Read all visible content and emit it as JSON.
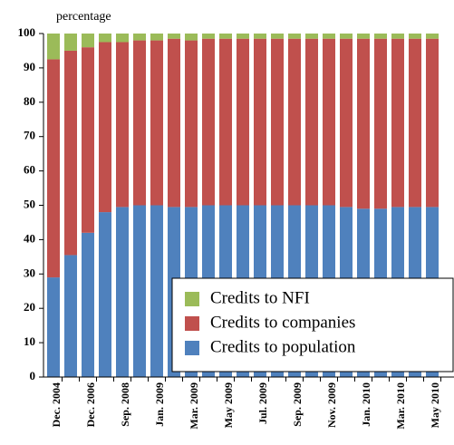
{
  "chart_data": {
    "type": "stacked_bar",
    "ylabel": "percentage",
    "categories": [
      "Dec. 2004",
      null,
      "Dec. 2006",
      null,
      "Sep. 2008",
      null,
      "Jan. 2009",
      null,
      "Mar. 2009",
      null,
      "May 2009",
      null,
      "Jul. 2009",
      null,
      "Sep. 2009",
      null,
      "Nov. 2009",
      null,
      "Jan. 2010",
      null,
      "Mar. 2010",
      null,
      "May 2010"
    ],
    "series": [
      {
        "name": "Credits to population",
        "color": "#4f81bd",
        "values": [
          29,
          35.5,
          42,
          48,
          49.5,
          50,
          50,
          49.5,
          49.5,
          50,
          50,
          50,
          50,
          50,
          50,
          50,
          50,
          49.5,
          49,
          49,
          49.5,
          49.5,
          49.5
        ]
      },
      {
        "name": "Credits to companies",
        "color": "#c0504d",
        "values": [
          63.5,
          59.5,
          54,
          49.5,
          48,
          48,
          48,
          49,
          48.5,
          48.5,
          48.5,
          48.5,
          48.5,
          48.5,
          48.5,
          48.5,
          48.5,
          49,
          49.5,
          49.5,
          49,
          49,
          49
        ]
      },
      {
        "name": "Credits to NFI",
        "color": "#9bbb59",
        "values": [
          7.5,
          5,
          4,
          2.5,
          2.5,
          2,
          2,
          1.5,
          2,
          1.5,
          1.5,
          1.5,
          1.5,
          1.5,
          1.5,
          1.5,
          1.5,
          1.5,
          1.5,
          1.5,
          1.5,
          1.5,
          1.5
        ]
      }
    ],
    "ylim": [
      0,
      100
    ],
    "yticks": [
      0,
      10,
      20,
      30,
      40,
      50,
      60,
      70,
      80,
      90,
      100
    ]
  }
}
